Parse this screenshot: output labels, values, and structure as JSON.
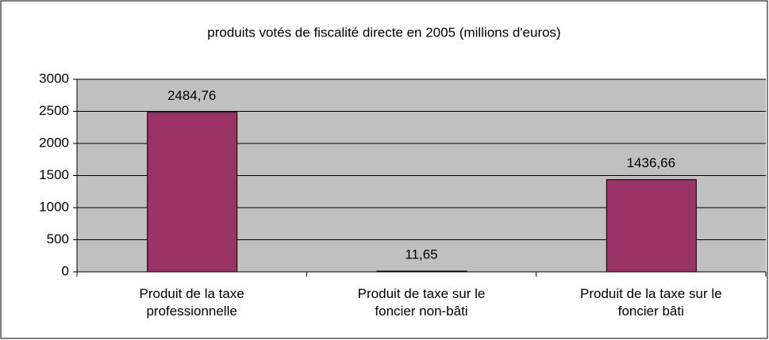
{
  "chart_data": {
    "type": "bar",
    "title": "produits votés de fiscalité directe en 2005 (millions d'euros)",
    "categories": [
      "Produit de la taxe professionnelle",
      "Produit de taxe sur le foncier non-bâti",
      "Produit de la taxe sur le foncier bâti"
    ],
    "values": [
      2484.76,
      11.65,
      1436.66
    ],
    "value_labels": [
      "2484,76",
      "11,65",
      "1436,66"
    ],
    "color": "#993366",
    "ylim": [
      0,
      3000
    ],
    "yticks": [
      0,
      500,
      1000,
      1500,
      2000,
      2500,
      3000
    ],
    "grid": true
  }
}
